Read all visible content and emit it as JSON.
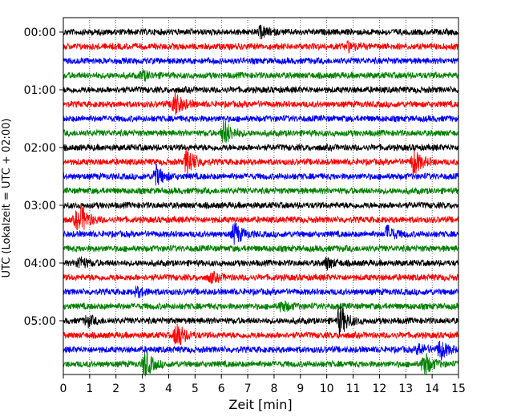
{
  "chart_data": {
    "type": "line",
    "title": "",
    "xlabel": "Zeit  [min]",
    "ylabel": "UTC (Lokalzeit = UTC + 02:00)",
    "xlim": [
      0,
      15
    ],
    "x_ticks": [
      0,
      1,
      2,
      3,
      4,
      5,
      6,
      7,
      8,
      9,
      10,
      11,
      12,
      13,
      14,
      15
    ],
    "y_ticks": [
      "00:00",
      "01:00",
      "02:00",
      "03:00",
      "04:00",
      "05:00"
    ],
    "trace_interval_minutes": 15,
    "grid": "vertical dotted",
    "color_cycle": [
      "#000000",
      "#ff0000",
      "#0000ff",
      "#008000"
    ],
    "series": [
      {
        "start": "00:00",
        "color": "#000000",
        "events": [
          {
            "t": 7.5,
            "amp": 0.6
          }
        ]
      },
      {
        "start": "00:15",
        "color": "#ff0000",
        "events": [
          {
            "t": 10.8,
            "amp": 0.5
          }
        ]
      },
      {
        "start": "00:30",
        "color": "#0000ff",
        "events": []
      },
      {
        "start": "00:45",
        "color": "#008000",
        "events": [
          {
            "t": 3.0,
            "amp": 0.5
          }
        ]
      },
      {
        "start": "01:00",
        "color": "#000000",
        "events": []
      },
      {
        "start": "01:15",
        "color": "#ff0000",
        "events": [
          {
            "t": 4.2,
            "amp": 1.6
          }
        ]
      },
      {
        "start": "01:30",
        "color": "#0000ff",
        "events": []
      },
      {
        "start": "01:45",
        "color": "#008000",
        "events": [
          {
            "t": 6.1,
            "amp": 1.5
          }
        ]
      },
      {
        "start": "02:00",
        "color": "#000000",
        "events": []
      },
      {
        "start": "02:15",
        "color": "#ff0000",
        "events": [
          {
            "t": 4.7,
            "amp": 1.7
          },
          {
            "t": 13.3,
            "amp": 1.5
          }
        ]
      },
      {
        "start": "02:30",
        "color": "#0000ff",
        "events": [
          {
            "t": 3.5,
            "amp": 1.2
          }
        ]
      },
      {
        "start": "02:45",
        "color": "#008000",
        "events": []
      },
      {
        "start": "03:00",
        "color": "#000000",
        "events": []
      },
      {
        "start": "03:15",
        "color": "#ff0000",
        "events": [
          {
            "t": 0.5,
            "amp": 0.9
          },
          {
            "t": 0.7,
            "amp": 1.0
          }
        ]
      },
      {
        "start": "03:30",
        "color": "#0000ff",
        "events": [
          {
            "t": 6.5,
            "amp": 1.3
          },
          {
            "t": 12.3,
            "amp": 0.9
          }
        ]
      },
      {
        "start": "03:45",
        "color": "#008000",
        "events": []
      },
      {
        "start": "04:00",
        "color": "#000000",
        "events": [
          {
            "t": 0.6,
            "amp": 0.7
          },
          {
            "t": 10.0,
            "amp": 0.6
          }
        ]
      },
      {
        "start": "04:15",
        "color": "#ff0000",
        "events": [
          {
            "t": 5.6,
            "amp": 0.5
          }
        ]
      },
      {
        "start": "04:30",
        "color": "#0000ff",
        "events": [
          {
            "t": 2.8,
            "amp": 0.5
          }
        ]
      },
      {
        "start": "04:45",
        "color": "#008000",
        "events": [
          {
            "t": 8.3,
            "amp": 0.6
          }
        ]
      },
      {
        "start": "05:00",
        "color": "#000000",
        "events": [
          {
            "t": 0.9,
            "amp": 0.6
          },
          {
            "t": 10.5,
            "amp": 1.8
          }
        ]
      },
      {
        "start": "05:15",
        "color": "#ff0000",
        "events": [
          {
            "t": 4.3,
            "amp": 1.6
          }
        ]
      },
      {
        "start": "05:30",
        "color": "#0000ff",
        "events": [
          {
            "t": 14.3,
            "amp": 1.1
          },
          {
            "t": 13.5,
            "amp": 0.6
          }
        ]
      },
      {
        "start": "05:45",
        "color": "#008000",
        "events": [
          {
            "t": 3.1,
            "amp": 1.5
          },
          {
            "t": 13.7,
            "amp": 1.4
          }
        ]
      }
    ]
  }
}
